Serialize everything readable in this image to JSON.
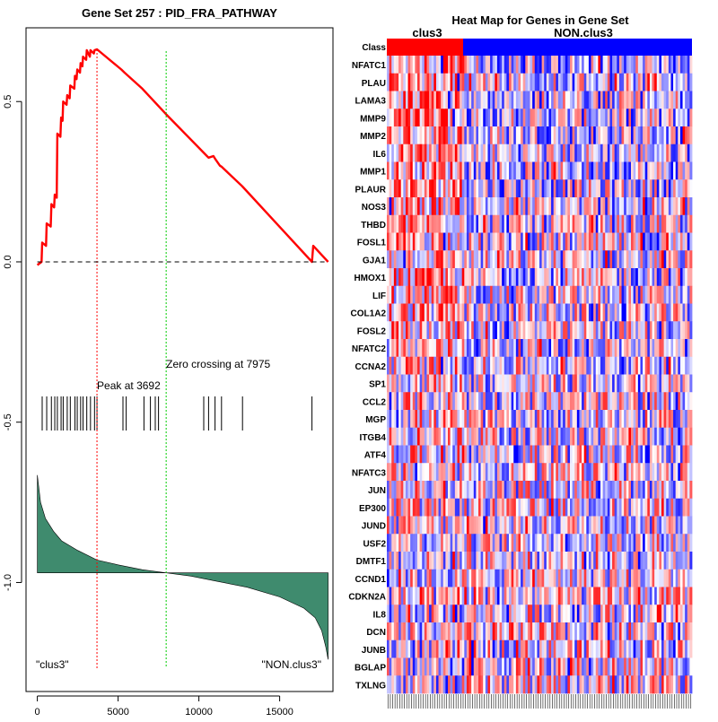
{
  "chart_data": [
    {
      "type": "line",
      "title": "Gene Set  257 : PID_FRA_PATHWAY",
      "x_ticks": [
        0,
        5000,
        10000,
        15000
      ],
      "y_ticks": [
        0.5,
        0.0,
        -0.5,
        -1.0
      ],
      "x_tick_labels": [
        "0",
        "5000",
        "10000",
        "15000"
      ],
      "y_tick_labels": [
        "0.5",
        "0.0",
        "-0.5",
        "-1.0"
      ],
      "xlim": [
        -700,
        18300
      ],
      "ylim": [
        -1.34,
        0.73
      ],
      "running_es": {
        "x": [
          0,
          260,
          300,
          540,
          580,
          830,
          870,
          1040,
          1080,
          1200,
          1240,
          1430,
          1470,
          1560,
          1600,
          1810,
          1850,
          2000,
          2040,
          2290,
          2330,
          2430,
          2470,
          2640,
          2680,
          2790,
          2830,
          3020,
          3060,
          3250,
          3290,
          3500,
          3540,
          3692,
          5200,
          5400,
          6500,
          7975,
          10500,
          10600,
          10900,
          11000,
          11300,
          11400,
          12600,
          12700,
          17000,
          17080,
          18000
        ],
        "y": [
          -0.01,
          0.0,
          0.06,
          0.05,
          0.12,
          0.11,
          0.18,
          0.17,
          0.21,
          0.2,
          0.4,
          0.39,
          0.45,
          0.44,
          0.5,
          0.49,
          0.52,
          0.51,
          0.55,
          0.54,
          0.58,
          0.57,
          0.6,
          0.59,
          0.62,
          0.61,
          0.64,
          0.63,
          0.66,
          0.64,
          0.66,
          0.65,
          0.66,
          0.663,
          0.6,
          0.59,
          0.54,
          0.46,
          0.33,
          0.325,
          0.33,
          0.322,
          0.3,
          0.297,
          0.24,
          0.235,
          0.0,
          0.05,
          0.0
        ]
      },
      "hits": [
        300,
        580,
        870,
        1080,
        1240,
        1470,
        1600,
        1850,
        2040,
        2330,
        2470,
        2680,
        2830,
        3060,
        3290,
        3540,
        3692,
        5300,
        5500,
        6600,
        7000,
        7300,
        7500,
        10300,
        10600,
        11000,
        11400,
        12700,
        17000
      ],
      "peak_x": 3692,
      "peak_label": "Peak at 3692",
      "zero_crossing_x": 7975,
      "zero_crossing_label": "Zero crossing at 7975",
      "ranked_metric": {
        "x": [
          0,
          200,
          500,
          1000,
          1500,
          2500,
          3692,
          5000,
          6500,
          7975,
          9500,
          11000,
          13000,
          15000,
          16500,
          17200,
          17600,
          17850,
          18000
        ],
        "y": [
          -0.665,
          -0.75,
          -0.8,
          -0.84,
          -0.87,
          -0.9,
          -0.93,
          -0.945,
          -0.96,
          -0.97,
          -0.98,
          -0.995,
          -1.015,
          -1.045,
          -1.08,
          -1.11,
          -1.15,
          -1.2,
          -1.24
        ]
      },
      "metric_baseline": -0.97,
      "left_label": "\"clus3\"",
      "right_label": "\"NON.clus3\"",
      "colors": {
        "es_line": "#ff0000",
        "peak_line": "#ff0000",
        "zero_cross_line": "#00cc00",
        "metric_fill": "#3f8b6e",
        "hits": "#000000"
      }
    },
    {
      "type": "heatmap",
      "title": "Heat Map for Genes in Gene Set",
      "class_row_label": "Class",
      "class_labels": [
        "clus3",
        "NON.clus3"
      ],
      "class_colors": [
        "#ff0000",
        "#0000ff"
      ],
      "class_split_fraction": 0.25,
      "num_columns": 130,
      "genes": [
        "NFATC1",
        "PLAU",
        "LAMA3",
        "MMP9",
        "MMP2",
        "IL6",
        "MMP1",
        "PLAUR",
        "NOS3",
        "THBD",
        "FOSL1",
        "GJA1",
        "HMOX1",
        "LIF",
        "COL1A2",
        "FOSL2",
        "NFATC2",
        "CCNA2",
        "SP1",
        "CCL2",
        "MGP",
        "ITGB4",
        "ATF4",
        "NFATC3",
        "JUN",
        "EP300",
        "JUND",
        "USF2",
        "DMTF1",
        "CCND1",
        "CDKN2A",
        "IL8",
        "DCN",
        "JUNB",
        "BGLAP",
        "TXLNG"
      ]
    }
  ]
}
